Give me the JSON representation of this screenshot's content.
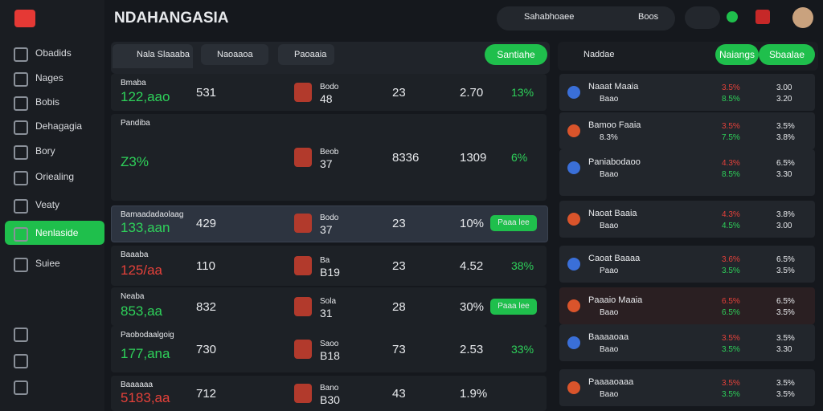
{
  "header": {
    "logo": "NDAHANGASIA",
    "search": "Sahabhoaee",
    "dropdown": "Boos"
  },
  "sidebar": {
    "items": [
      "Obadids",
      "Nages",
      "Bobis",
      "Dehagagia",
      "Bory",
      "Oriealing",
      "Veaty",
      "Nenlaside",
      "Suiee"
    ],
    "active": 7
  },
  "tabs": [
    "Nala Slaaaba",
    "Naoaaoa",
    "Paoaaia"
  ],
  "main_button": "Santiahe",
  "rows": [
    {
      "label": "Bmaba",
      "value": "122,aao",
      "count": "531",
      "team": "Bodo",
      "num": "48",
      "score": "23",
      "odds": "2.70",
      "pct": "13%",
      "color": "green"
    },
    {
      "label": "Pandiba",
      "value": "Z3%",
      "count": "",
      "team": "Beob",
      "num": "37",
      "score": "8336",
      "odds": "1309",
      "pct": "6%",
      "color": "green"
    },
    {
      "label": "Bamaadadaolaag",
      "value": "133,aan",
      "count": "429",
      "team": "Bodo",
      "num": "37",
      "score": "23",
      "odds": "10%",
      "pct": "Paaa lee",
      "color": "green"
    },
    {
      "label": "Baaaba",
      "value": "125/aa",
      "count": "110",
      "team": "Ba",
      "num": "B19",
      "score": "23",
      "odds": "4.52",
      "pct": "38%",
      "color": "red"
    },
    {
      "label": "Neaba",
      "value": "853,aa",
      "count": "832",
      "team": "Sola",
      "num": "31",
      "score": "28",
      "odds": "30%",
      "pct": "Paaa lee",
      "color": "green"
    },
    {
      "label": "Paobodaalgoig",
      "value": "177,ana",
      "count": "730",
      "team": "Saoo",
      "num": "B18",
      "score": "73",
      "odds": "2.53",
      "pct": "33%",
      "color": "green"
    },
    {
      "label": "Baaaaaa",
      "value": "5183,aa",
      "count": "712",
      "team": "Bano",
      "num": "B30",
      "score": "43",
      "odds": "1.9%",
      "pct": "",
      "color": "red"
    }
  ],
  "right_panel": {
    "search": "Naddae",
    "buttons": [
      "Naiangs",
      "Sbaalae"
    ],
    "items": [
      {
        "name": "Naaat Maaia",
        "sub": "Baao",
        "a": "3.5%",
        "b": "8.5%",
        "c": "3.00",
        "d": "3.20"
      },
      {
        "name": "Bamoo Faaia",
        "sub": "8.3%",
        "a": "3.5%",
        "b": "7.5%",
        "c": "3.5%",
        "d": "3.8%"
      },
      {
        "name": "Paniabodaoo",
        "sub": "Baao",
        "a": "4.3%",
        "b": "8.5%",
        "c": "6.5%",
        "d": "3.30"
      },
      {
        "name": "Naoat Baaia",
        "sub": "Baao",
        "a": "4.3%",
        "b": "4.5%",
        "c": "3.8%",
        "d": "3.00"
      },
      {
        "name": "Caoat Baaaa",
        "sub": "Paao",
        "a": "3.6%",
        "b": "3.5%",
        "c": "6.5%",
        "d": "3.5%"
      },
      {
        "name": "Paaaio Maaia",
        "sub": "Baao",
        "a": "6.5%",
        "b": "6.5%",
        "c": "6.5%",
        "d": "3.5%"
      },
      {
        "name": "Baaaaoaa",
        "sub": "Baao",
        "a": "3.5%",
        "b": "3.5%",
        "c": "3.5%",
        "d": "3.30"
      },
      {
        "name": "Paaaaoaaa",
        "sub": "Baao",
        "a": "3.5%",
        "b": "3.5%",
        "c": "3.5%",
        "d": "3.5%"
      }
    ]
  }
}
